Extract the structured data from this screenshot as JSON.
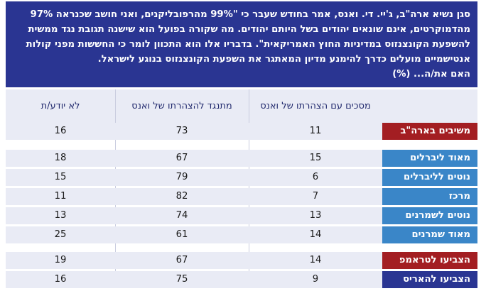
{
  "question": {
    "text": "סגן נשיא ארה\"ב, ג'יי. די. ואנס, אמר בחודש שעבר כי \"99% מהרפובליקנים, ואני חושב שכנראה 97% מהדמוקרטים, אינם שונאים יהודים בשל היותם יהודים. מה שקורה בפועל הוא שישנה תגובת נגד ממשית להשפעת הקונצנזוס במדיניות החוץ האמריקאית\". בדבריו אלו הוא התכוון לומר כי החששות מפני קולות אנטישמיים מועלים כדרך להימנע מדיון המאתגר את השפעת הקונצנזוס בנוגע לישראל.",
    "ask": "האם את/ה... (%)"
  },
  "columns": {
    "agree": "מסכים עם הצהרתו של ואנס",
    "oppose": "מתנגד להצהרתו של ואנס",
    "dont_know": "לא יודע/ת"
  },
  "colors": {
    "question_bg": "#2a3592",
    "band_bg": "#e9ebf5",
    "total_red": "#a31e22",
    "ideology_blue": "#3a86c8",
    "trump_red": "#a31e22",
    "harris_navy": "#2a3592"
  },
  "rows": [
    {
      "label": "משיבים בארה\"ב",
      "agree": "11",
      "oppose": "73",
      "dont_know": "16"
    },
    {
      "label": "מאוד ליברלים",
      "agree": "15",
      "oppose": "67",
      "dont_know": "18"
    },
    {
      "label": "נוטים לליברלים",
      "agree": "6",
      "oppose": "79",
      "dont_know": "15"
    },
    {
      "label": "מרכז",
      "agree": "7",
      "oppose": "82",
      "dont_know": "11"
    },
    {
      "label": "נוטים לשמרנים",
      "agree": "13",
      "oppose": "74",
      "dont_know": "13"
    },
    {
      "label": "מאוד שמרנים",
      "agree": "14",
      "oppose": "61",
      "dont_know": "25"
    },
    {
      "label": "הצביעו לטראמפ",
      "agree": "14",
      "oppose": "67",
      "dont_know": "19"
    },
    {
      "label": "הצביעו להאריס",
      "agree": "9",
      "oppose": "75",
      "dont_know": "16"
    }
  ]
}
